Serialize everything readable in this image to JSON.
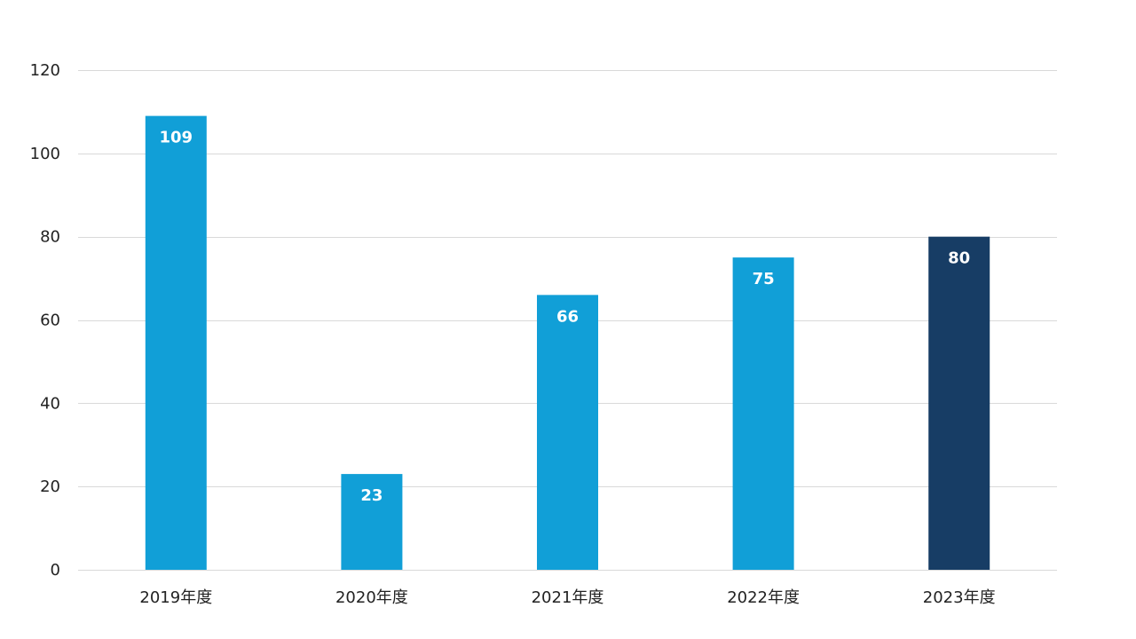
{
  "chart_data": {
    "type": "bar",
    "categories": [
      "2019年度",
      "2020年度",
      "2021年度",
      "2022年度",
      "2023年度"
    ],
    "values": [
      109,
      23,
      66,
      75,
      80
    ],
    "ylim": [
      0,
      120
    ],
    "yticks": [
      0,
      20,
      40,
      60,
      80,
      100,
      120
    ],
    "grid": true,
    "colors": {
      "default": "#119fd7",
      "highlight": "#173d65",
      "label_text": "#ffffff",
      "grid": "#d9d9d9",
      "tick_text": "#222222"
    },
    "highlight_index": 4
  }
}
